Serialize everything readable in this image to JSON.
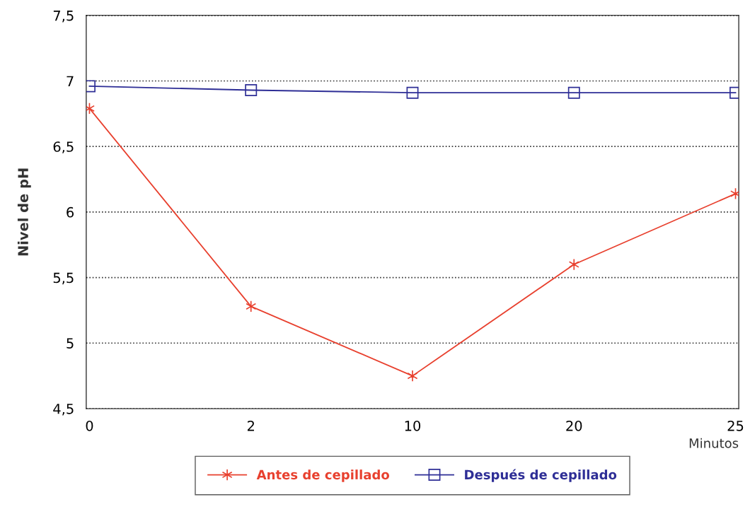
{
  "chart_data": {
    "type": "line",
    "xlabel": "Minutos",
    "ylabel": "Nivel de pH",
    "categories": [
      "0",
      "2",
      "10",
      "20",
      "25"
    ],
    "series": [
      {
        "name": "Antes de cepillado",
        "color": "#e8402e",
        "marker": "cross",
        "values": [
          6.79,
          5.28,
          4.75,
          5.6,
          6.14
        ]
      },
      {
        "name": "Después de cepillado",
        "color": "#2e2e96",
        "marker": "square",
        "values": [
          6.96,
          6.93,
          6.91,
          6.91,
          6.91
        ]
      }
    ],
    "ylim": [
      4.5,
      7.5
    ],
    "yticks": [
      {
        "value": 4.5,
        "label": "4,5"
      },
      5,
      {
        "value": 5.5,
        "label": "5,5"
      },
      6,
      {
        "value": 6.5,
        "label": "6,5"
      },
      7,
      {
        "value": 7.5,
        "label": "7,5"
      }
    ],
    "grid": "y",
    "legend": "bottom",
    "line_style": "solid"
  }
}
